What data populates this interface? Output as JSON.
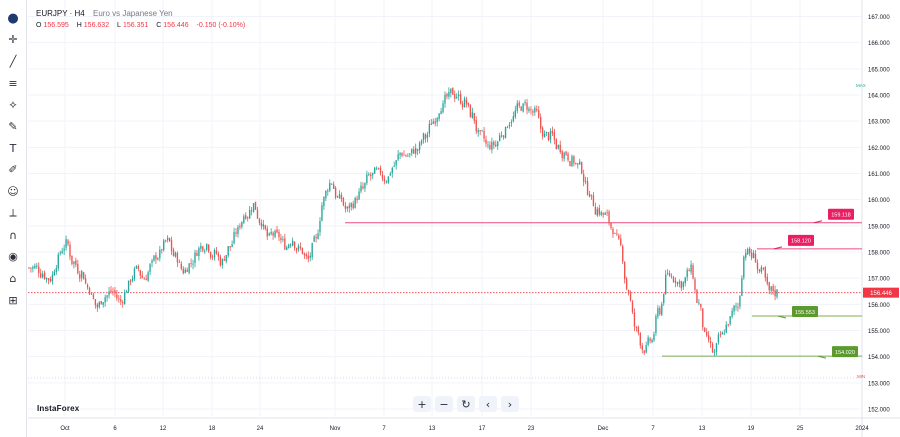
{
  "toolbar": {
    "icons": [
      "logo-icon",
      "cursor-icon",
      "trend-line-icon",
      "fib-icon",
      "patterns-icon",
      "brush-tools-icon",
      "text-icon",
      "pen-icon",
      "emoji-icon",
      "measure-icon",
      "magnet-icon",
      "eye-icon",
      "lock-icon",
      "trash-icon"
    ]
  },
  "header": {
    "symbol": "EURJPY · H4",
    "description": "Euro vs Japanese Yen",
    "open_label": "O",
    "open": "156.595",
    "high_label": "H",
    "high": "156.632",
    "low_label": "L",
    "low": "156.351",
    "close_label": "C",
    "close": "156.446",
    "change": "-0.150 (-0.10%)"
  },
  "brand": "InstaForex",
  "controls": [
    "+",
    "−",
    "↻",
    "‹",
    "›"
  ],
  "colors": {
    "up": "#26a69a",
    "down": "#ef5350",
    "resistance": "#e91e63",
    "support": "#5b9a2d",
    "current": "#f23645",
    "grid": "#f0f3fa"
  },
  "chart_data": {
    "type": "candlestick",
    "symbol": "EURJPY",
    "timeframe": "H4",
    "ylim": [
      152,
      167
    ],
    "y_ticks": [
      "167.000",
      "166.000",
      "165.000",
      "164.000",
      "163.000",
      "162.000",
      "161.000",
      "160.000",
      "159.000",
      "158.000",
      "157.000",
      "156.000",
      "155.000",
      "154.000",
      "153.000",
      "152.000"
    ],
    "x_ticks": [
      "Oct",
      "6",
      "12",
      "18",
      "24",
      "Nov",
      "7",
      "13",
      "17",
      "23",
      "Dec",
      "7",
      "13",
      "19",
      "25",
      "2024"
    ],
    "current_price": "156.446",
    "level_labels": {
      "high": "MAX",
      "low": "MIN"
    },
    "levels": [
      {
        "label": "159.118",
        "value": 159.118,
        "kind": "resistance"
      },
      {
        "label": "158.120",
        "value": 158.12,
        "kind": "resistance"
      },
      {
        "label": "155.553",
        "value": 155.553,
        "kind": "support"
      },
      {
        "label": "154.020",
        "value": 154.02,
        "kind": "support"
      }
    ],
    "close_path": [
      157.4,
      157.2,
      157.0,
      157.7,
      158.3,
      157.6,
      157.2,
      156.6,
      155.9,
      156.3,
      156.5,
      156.1,
      156.7,
      157.3,
      157.0,
      157.5,
      157.9,
      158.4,
      157.8,
      157.3,
      157.6,
      158.1,
      158.3,
      157.9,
      157.6,
      158.2,
      158.8,
      159.5,
      159.8,
      159.2,
      158.5,
      158.6,
      158.3,
      158.5,
      158.1,
      157.7,
      158.4,
      160.0,
      160.7,
      160.0,
      159.6,
      159.9,
      160.4,
      160.9,
      161.0,
      160.8,
      161.3,
      161.8,
      161.7,
      161.9,
      162.4,
      163.0,
      163.6,
      163.9,
      164.0,
      163.7,
      163.2,
      162.4,
      162.0,
      162.1,
      162.6,
      163.1,
      163.5,
      163.6,
      163.3,
      162.6,
      162.4,
      162.0,
      161.8,
      161.5,
      161.2,
      160.3,
      159.6,
      159.4,
      158.9,
      158.2,
      156.5,
      155.0,
      154.3,
      154.6,
      155.8,
      157.1,
      157.0,
      156.8,
      157.3,
      156.0,
      154.6,
      154.1,
      154.8,
      155.4,
      155.9,
      158.1,
      157.8,
      157.2,
      156.5,
      156.446
    ]
  }
}
